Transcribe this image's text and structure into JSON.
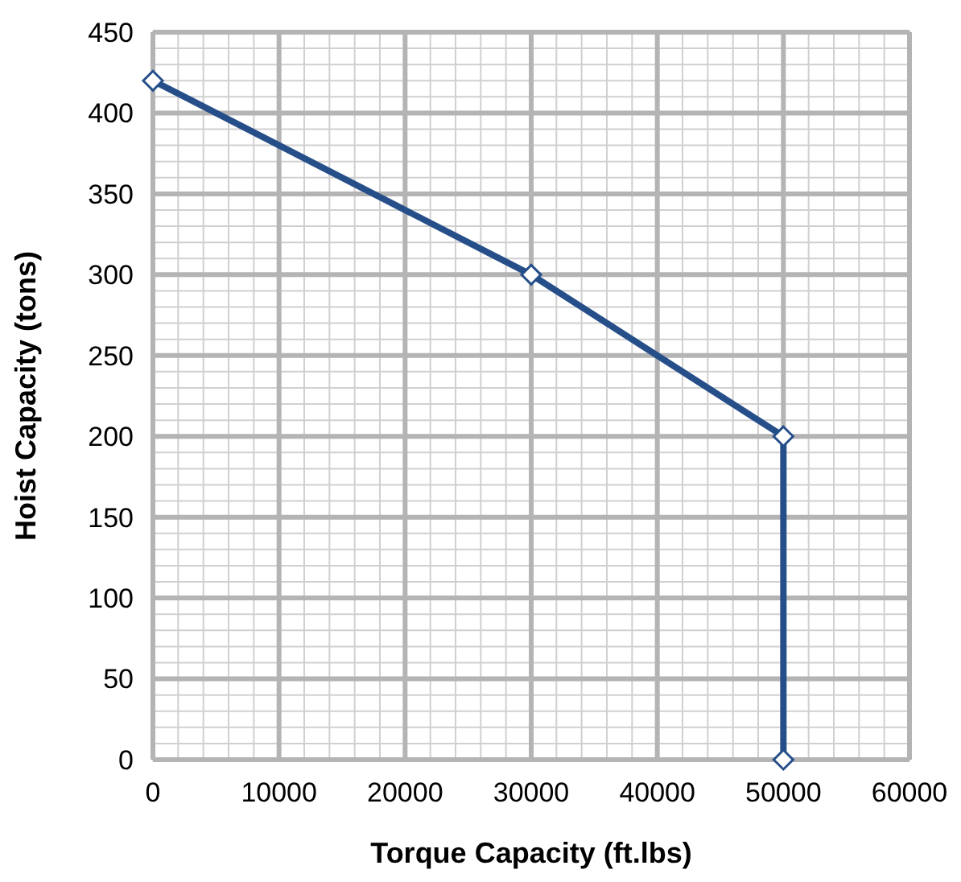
{
  "chart_data": {
    "type": "line",
    "xlabel": "Torque Capacity (ft.lbs)",
    "ylabel": "Hoist Capacity (tons)",
    "x": [
      0,
      30000,
      50000,
      50000
    ],
    "series": [
      {
        "color": "#264f8a",
        "values": [
          420,
          300,
          200,
          0
        ]
      }
    ],
    "xlim": [
      0,
      60000
    ],
    "xticks": [
      0,
      10000,
      20000,
      30000,
      40000,
      50000,
      60000
    ],
    "ylim": [
      0,
      450
    ],
    "yticks": [
      0,
      50,
      100,
      150,
      200,
      250,
      300,
      350,
      400,
      450
    ],
    "grid": true,
    "marker": "diamond",
    "line_style": "solid"
  }
}
